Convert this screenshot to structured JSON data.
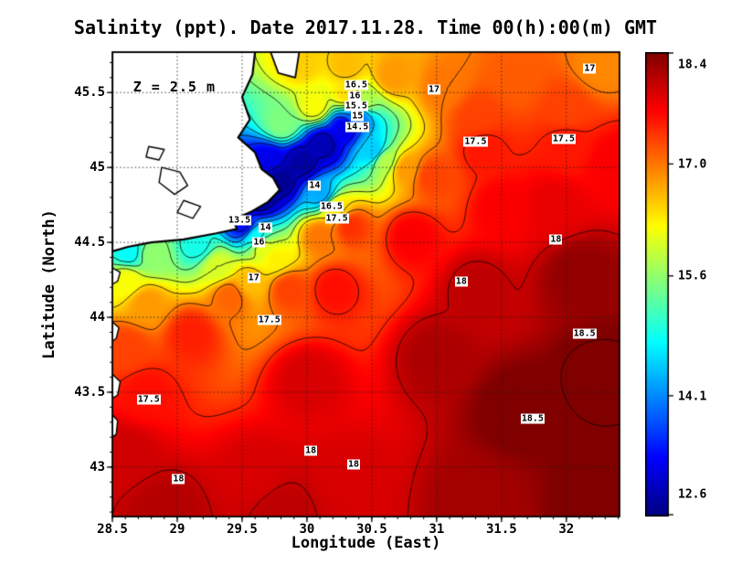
{
  "figure": {
    "title": "Salinity (ppt). Date 2017.11.28. Time 00(h):00(m) GMT",
    "annotation": "Z = 2.5 m",
    "axes": {
      "x_label": "Longitude (East)",
      "y_label": "Latitude (North)",
      "x_ticks": [
        {
          "value": 28.5,
          "label": "28.5"
        },
        {
          "value": 29,
          "label": "29"
        },
        {
          "value": 29.5,
          "label": "29.5"
        },
        {
          "value": 30,
          "label": "30"
        },
        {
          "value": 30.5,
          "label": "30.5"
        },
        {
          "value": 31,
          "label": "31"
        },
        {
          "value": 31.5,
          "label": "31.5"
        },
        {
          "value": 32,
          "label": "32"
        }
      ],
      "y_ticks": [
        {
          "value": 43,
          "label": "43"
        },
        {
          "value": 43.5,
          "label": "43.5"
        },
        {
          "value": 44,
          "label": "44"
        },
        {
          "value": 44.5,
          "label": "44.5"
        },
        {
          "value": 45,
          "label": "45"
        },
        {
          "value": 45.5,
          "label": "45.5"
        }
      ]
    },
    "colorbar": {
      "ticks": [
        {
          "value": 18.4,
          "label": "18.4"
        },
        {
          "value": 17.0,
          "label": "17.0"
        },
        {
          "value": 15.6,
          "label": "15.6"
        },
        {
          "value": 14.1,
          "label": "14.1"
        },
        {
          "value": 12.6,
          "label": "12.6"
        }
      ]
    }
  },
  "chart_data": {
    "type": "heatmap",
    "title": "Salinity (ppt). Date 2017.11.28. Time 00(h):00(m) GMT",
    "variable": "Salinity",
    "units": "ppt",
    "date": "2017.11.28",
    "time": "00(h):00(m) GMT",
    "depth_annotation": "Z = 2.5 m",
    "depth_m": 2.5,
    "xlabel": "Longitude (East)",
    "ylabel": "Latitude (North)",
    "lon_range": [
      28.5,
      32.41
    ],
    "lat_range": [
      42.67,
      45.77
    ],
    "x_ticks": [
      28.5,
      29,
      29.5,
      30,
      30.5,
      31,
      31.5,
      32
    ],
    "y_ticks": [
      43,
      43.5,
      44,
      44.5,
      45,
      45.5
    ],
    "value_range": [
      12.6,
      18.4
    ],
    "colorbar_ticks": [
      18.4,
      17.0,
      15.6,
      14.1,
      12.6
    ],
    "colormap_stops": [
      [
        0,
        [
          0,
          0,
          128
        ]
      ],
      [
        0.125,
        [
          0,
          0,
          255
        ]
      ],
      [
        0.375,
        [
          0,
          255,
          255
        ]
      ],
      [
        0.625,
        [
          255,
          255,
          0
        ]
      ],
      [
        0.875,
        [
          255,
          0,
          0
        ]
      ],
      [
        1,
        [
          128,
          0,
          0
        ]
      ]
    ],
    "contour_levels": [
      13,
      13.5,
      14,
      14.5,
      15,
      15.5,
      16,
      16.5,
      17,
      17.5,
      18,
      18.5
    ],
    "contour_labels": [
      {
        "v": "16.5",
        "lon": 30.38,
        "lat": 45.55
      },
      {
        "v": "16",
        "lon": 30.37,
        "lat": 45.48
      },
      {
        "v": "15.5",
        "lon": 30.38,
        "lat": 45.41
      },
      {
        "v": "15",
        "lon": 30.39,
        "lat": 45.34
      },
      {
        "v": "14.5",
        "lon": 30.39,
        "lat": 45.27
      },
      {
        "v": "17",
        "lon": 30.98,
        "lat": 45.52
      },
      {
        "v": "17",
        "lon": 32.18,
        "lat": 45.66
      },
      {
        "v": "17.5",
        "lon": 31.3,
        "lat": 45.17
      },
      {
        "v": "17.5",
        "lon": 31.98,
        "lat": 45.19
      },
      {
        "v": "14",
        "lon": 30.06,
        "lat": 44.88
      },
      {
        "v": "16.5",
        "lon": 30.19,
        "lat": 44.74
      },
      {
        "v": "17.5",
        "lon": 30.23,
        "lat": 44.66
      },
      {
        "v": "13.5",
        "lon": 29.48,
        "lat": 44.65
      },
      {
        "v": "14",
        "lon": 29.68,
        "lat": 44.6
      },
      {
        "v": "16",
        "lon": 29.63,
        "lat": 44.5
      },
      {
        "v": "17",
        "lon": 29.59,
        "lat": 44.26
      },
      {
        "v": "17.5",
        "lon": 29.71,
        "lat": 43.98
      },
      {
        "v": "17.5",
        "lon": 28.78,
        "lat": 43.45
      },
      {
        "v": "18",
        "lon": 29.01,
        "lat": 42.92
      },
      {
        "v": "18",
        "lon": 30.03,
        "lat": 43.11
      },
      {
        "v": "18",
        "lon": 30.36,
        "lat": 43.02
      },
      {
        "v": "18",
        "lon": 31.92,
        "lat": 44.52
      },
      {
        "v": "18",
        "lon": 31.19,
        "lat": 44.24
      },
      {
        "v": "18.5",
        "lon": 32.14,
        "lat": 43.89
      },
      {
        "v": "18.5",
        "lon": 31.74,
        "lat": 43.32
      }
    ],
    "annotation_pos": [
      28.66,
      45.54
    ],
    "field_points": [
      [
        29.62,
        44.8,
        12.7
      ],
      [
        29.78,
        44.92,
        12.7
      ],
      [
        29.95,
        45.04,
        12.8
      ],
      [
        30.12,
        45.16,
        12.9
      ],
      [
        30.28,
        45.27,
        13.2
      ],
      [
        30.38,
        45.35,
        14.0
      ],
      [
        30.42,
        45.45,
        15.8
      ],
      [
        30.3,
        45.5,
        16.4
      ],
      [
        30.05,
        45.42,
        16.2
      ],
      [
        29.8,
        45.3,
        15.5
      ],
      [
        29.7,
        45.05,
        13.2
      ],
      [
        30.5,
        45.12,
        14.5
      ],
      [
        30.6,
        45.05,
        15.8
      ],
      [
        30.75,
        45.0,
        16.8
      ],
      [
        30.95,
        44.95,
        17.3
      ],
      [
        30.1,
        44.83,
        14.3
      ],
      [
        30.22,
        44.73,
        16.4
      ],
      [
        30.32,
        44.62,
        17.4
      ],
      [
        30.1,
        44.55,
        17.0
      ],
      [
        29.5,
        44.62,
        13.4
      ],
      [
        29.6,
        44.54,
        14.8
      ],
      [
        29.65,
        44.47,
        16.1
      ],
      [
        29.75,
        44.4,
        16.3
      ],
      [
        29.85,
        44.2,
        17.3
      ],
      [
        29.55,
        44.25,
        16.6
      ],
      [
        28.62,
        44.44,
        14.8
      ],
      [
        28.8,
        44.42,
        15.6
      ],
      [
        29.15,
        44.48,
        14.9
      ],
      [
        29.3,
        44.35,
        16.0
      ],
      [
        28.6,
        44.25,
        16.2
      ],
      [
        28.75,
        44.1,
        16.8
      ],
      [
        28.6,
        43.8,
        17.3
      ],
      [
        28.75,
        43.5,
        17.6
      ],
      [
        28.6,
        43.1,
        17.95
      ],
      [
        29.1,
        43.9,
        17.5
      ],
      [
        29.4,
        44.15,
        17.1
      ],
      [
        30.2,
        44.2,
        17.6
      ],
      [
        30.8,
        44.55,
        17.7
      ],
      [
        31.5,
        44.75,
        17.7
      ],
      [
        31.9,
        44.75,
        17.8
      ],
      [
        30.0,
        43.6,
        17.9
      ],
      [
        30.3,
        42.95,
        17.9
      ],
      [
        29.6,
        42.95,
        17.9
      ],
      [
        28.9,
        42.72,
        18.1
      ],
      [
        29.8,
        42.72,
        18.05
      ],
      [
        31.0,
        43.75,
        18.15
      ],
      [
        31.6,
        43.4,
        18.45
      ],
      [
        32.25,
        43.6,
        18.55
      ],
      [
        32.3,
        42.8,
        18.5
      ],
      [
        31.3,
        42.8,
        18.2
      ],
      [
        32.1,
        44.3,
        18.3
      ],
      [
        31.3,
        44.2,
        18.05
      ],
      [
        31.05,
        45.55,
        17.0
      ],
      [
        31.35,
        45.12,
        17.55
      ],
      [
        32.0,
        45.15,
        17.55
      ],
      [
        31.3,
        45.35,
        17.3
      ],
      [
        32.0,
        45.4,
        17.3
      ],
      [
        32.25,
        45.68,
        16.9
      ],
      [
        30.65,
        45.62,
        16.8
      ],
      [
        30.3,
        45.68,
        16.6
      ],
      [
        31.6,
        45.6,
        17.15
      ],
      [
        32.35,
        45.05,
        17.7
      ],
      [
        29.95,
        45.7,
        16.5
      ]
    ],
    "coastline_polygon": [
      [
        28.5,
        45.77
      ],
      [
        29.6,
        45.77
      ],
      [
        29.58,
        45.62
      ],
      [
        29.5,
        45.47
      ],
      [
        29.56,
        45.32
      ],
      [
        29.47,
        45.2
      ],
      [
        29.6,
        45.1
      ],
      [
        29.65,
        44.99
      ],
      [
        29.74,
        44.93
      ],
      [
        29.79,
        44.85
      ],
      [
        29.7,
        44.77
      ],
      [
        29.56,
        44.7
      ],
      [
        29.43,
        44.65
      ],
      [
        29.46,
        44.59
      ],
      [
        29.3,
        44.56
      ],
      [
        29.05,
        44.52
      ],
      [
        28.8,
        44.5
      ],
      [
        28.62,
        44.47
      ],
      [
        28.5,
        44.44
      ]
    ],
    "peninsula_polygon": [
      [
        29.72,
        45.77
      ],
      [
        29.94,
        45.77
      ],
      [
        29.91,
        45.6
      ],
      [
        29.78,
        45.63
      ]
    ],
    "lake_outlines": [
      [
        [
          28.88,
          45.0
        ],
        [
          29.02,
          44.97
        ],
        [
          29.08,
          44.88
        ],
        [
          28.98,
          44.82
        ],
        [
          28.86,
          44.9
        ]
      ],
      [
        [
          29.05,
          44.78
        ],
        [
          29.18,
          44.74
        ],
        [
          29.12,
          44.66
        ],
        [
          29.0,
          44.7
        ]
      ],
      [
        [
          28.78,
          45.14
        ],
        [
          28.9,
          45.12
        ],
        [
          28.86,
          45.05
        ],
        [
          28.76,
          45.07
        ]
      ]
    ],
    "coast_fragments": [
      [
        [
          28.5,
          44.33
        ],
        [
          28.56,
          44.3
        ],
        [
          28.54,
          44.24
        ],
        [
          28.5,
          44.22
        ]
      ],
      [
        [
          28.5,
          43.97
        ],
        [
          28.55,
          43.93
        ],
        [
          28.53,
          43.86
        ],
        [
          28.5,
          43.84
        ]
      ],
      [
        [
          28.5,
          43.62
        ],
        [
          28.56,
          43.57
        ],
        [
          28.54,
          43.48
        ],
        [
          28.5,
          43.46
        ]
      ],
      [
        [
          28.5,
          43.35
        ],
        [
          28.54,
          43.31
        ],
        [
          28.53,
          43.22
        ],
        [
          28.5,
          43.2
        ]
      ]
    ]
  }
}
